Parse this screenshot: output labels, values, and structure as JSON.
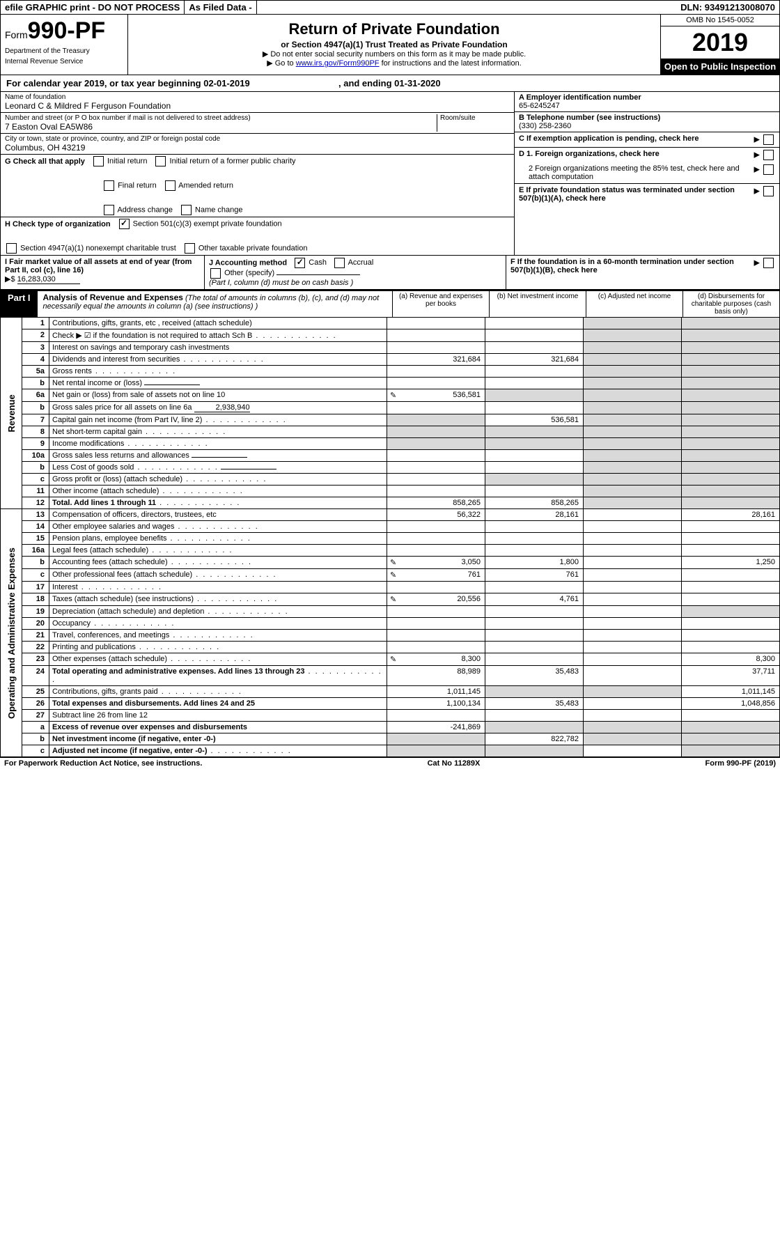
{
  "topbar": {
    "efile": "efile GRAPHIC print - DO NOT PROCESS",
    "asfiled": "As Filed Data -",
    "dln_label": "DLN:",
    "dln": "93491213008070"
  },
  "header": {
    "form_prefix": "Form",
    "form_num": "990-PF",
    "dept1": "Department of the Treasury",
    "dept2": "Internal Revenue Service",
    "title": "Return of Private Foundation",
    "subtitle": "or Section 4947(a)(1) Trust Treated as Private Foundation",
    "note1": "▶ Do not enter social security numbers on this form as it may be made public.",
    "note2_pre": "▶ Go to ",
    "note2_link": "www.irs.gov/Form990PF",
    "note2_post": " for instructions and the latest information.",
    "omb": "OMB No 1545-0052",
    "year": "2019",
    "open": "Open to Public Inspection"
  },
  "calyear": {
    "text_a": "For calendar year 2019, or tax year beginning 02-01-2019",
    "text_b": ", and ending 01-31-2020"
  },
  "left": {
    "name_label": "Name of foundation",
    "name": "Leonard C & Mildred F Ferguson Foundation",
    "addr_label": "Number and street (or P O  box number if mail is not delivered to street address)",
    "room_label": "Room/suite",
    "addr": "7 Easton Oval EA5W86",
    "city_label": "City or town, state or province, country, and ZIP or foreign postal code",
    "city": "Columbus, OH  43219"
  },
  "right": {
    "a_label": "A Employer identification number",
    "a_val": "65-6245247",
    "b_label": "B Telephone number (see instructions)",
    "b_val": "(330) 258-2360",
    "c_label": "C If exemption application is pending, check here",
    "d1": "D 1. Foreign organizations, check here",
    "d2": "2  Foreign organizations meeting the 85% test, check here and attach computation",
    "e": "E  If private foundation status was terminated under section 507(b)(1)(A), check here",
    "f": "F  If the foundation is in a 60-month termination under section 507(b)(1)(B), check here"
  },
  "g": {
    "label": "G Check all that apply",
    "opts": [
      "Initial return",
      "Initial return of a former public charity",
      "Final return",
      "Amended return",
      "Address change",
      "Name change"
    ]
  },
  "h": {
    "label": "H Check type of organization",
    "opt1": "Section 501(c)(3) exempt private foundation",
    "opt2": "Section 4947(a)(1) nonexempt charitable trust",
    "opt3": "Other taxable private foundation"
  },
  "i": {
    "label": "I Fair market value of all assets at end of year (from Part II, col  (c), line 16)",
    "prefix": "▶$",
    "val": "16,283,030"
  },
  "j": {
    "label": "J Accounting method",
    "cash": "Cash",
    "accrual": "Accrual",
    "other": "Other (specify)",
    "note": "(Part I, column (d) must be on cash basis )"
  },
  "part1": {
    "label": "Part I",
    "title": "Analysis of Revenue and Expenses",
    "sub": "(The total of amounts in columns (b), (c), and (d) may not necessarily equal the amounts in column (a) (see instructions) )",
    "col_a": "(a)  Revenue and expenses per books",
    "col_b": "(b)  Net investment income",
    "col_c": "(c)  Adjusted net income",
    "col_d": "(d)  Disbursements for charitable purposes (cash basis only)"
  },
  "vlabels": {
    "rev": "Revenue",
    "exp": "Operating and Administrative Expenses"
  },
  "rows": [
    {
      "n": "1",
      "t": "Contributions, gifts, grants, etc , received (attach schedule)",
      "a": "",
      "b": "",
      "c": "",
      "d": ""
    },
    {
      "n": "2",
      "t": "Check ▶ ☑ if the foundation is not required to attach Sch  B",
      "dots": true
    },
    {
      "n": "3",
      "t": "Interest on savings and temporary cash investments"
    },
    {
      "n": "4",
      "t": "Dividends and interest from securities",
      "dots": true,
      "a": "321,684",
      "b": "321,684"
    },
    {
      "n": "5a",
      "t": "Gross rents",
      "dots": true
    },
    {
      "n": "b",
      "t": "Net rental income or (loss)",
      "inline": true
    },
    {
      "n": "6a",
      "t": "Net gain or (loss) from sale of assets not on line 10",
      "pen": true,
      "a": "536,581",
      "bgrey": true
    },
    {
      "n": "b",
      "t": "Gross sales price for all assets on line 6a",
      "inline": true,
      "inlineval": "2,938,940"
    },
    {
      "n": "7",
      "t": "Capital gain net income (from Part IV, line 2)",
      "dots": true,
      "b": "536,581",
      "agrey": true
    },
    {
      "n": "8",
      "t": "Net short-term capital gain",
      "dots": true,
      "agrey": true,
      "bgrey": true
    },
    {
      "n": "9",
      "t": "Income modifications",
      "dots": true,
      "agrey": true,
      "bgrey": true
    },
    {
      "n": "10a",
      "t": "Gross sales less returns and allowances",
      "inline": true
    },
    {
      "n": "b",
      "t": "Less  Cost of goods sold",
      "dots": true,
      "inline": true
    },
    {
      "n": "c",
      "t": "Gross profit or (loss) (attach schedule)",
      "dots": true,
      "bgrey": true
    },
    {
      "n": "11",
      "t": "Other income (attach schedule)",
      "dots": true
    },
    {
      "n": "12",
      "t": "Total. Add lines 1 through 11",
      "dots": true,
      "bold": true,
      "a": "858,265",
      "b": "858,265"
    },
    {
      "n": "13",
      "t": "Compensation of officers, directors, trustees, etc",
      "a": "56,322",
      "b": "28,161",
      "d": "28,161"
    },
    {
      "n": "14",
      "t": "Other employee salaries and wages",
      "dots": true
    },
    {
      "n": "15",
      "t": "Pension plans, employee benefits",
      "dots": true
    },
    {
      "n": "16a",
      "t": "Legal fees (attach schedule)",
      "dots": true
    },
    {
      "n": "b",
      "t": "Accounting fees (attach schedule)",
      "dots": true,
      "pen": true,
      "a": "3,050",
      "b": "1,800",
      "d": "1,250"
    },
    {
      "n": "c",
      "t": "Other professional fees (attach schedule)",
      "dots": true,
      "pen": true,
      "a": "761",
      "b": "761"
    },
    {
      "n": "17",
      "t": "Interest",
      "dots": true
    },
    {
      "n": "18",
      "t": "Taxes (attach schedule) (see instructions)",
      "dots": true,
      "pen": true,
      "a": "20,556",
      "b": "4,761"
    },
    {
      "n": "19",
      "t": "Depreciation (attach schedule) and depletion",
      "dots": true,
      "dgrey": true
    },
    {
      "n": "20",
      "t": "Occupancy",
      "dots": true
    },
    {
      "n": "21",
      "t": "Travel, conferences, and meetings",
      "dots": true
    },
    {
      "n": "22",
      "t": "Printing and publications",
      "dots": true
    },
    {
      "n": "23",
      "t": "Other expenses (attach schedule)",
      "dots": true,
      "pen": true,
      "a": "8,300",
      "d": "8,300"
    },
    {
      "n": "24",
      "t": "Total operating and administrative expenses. Add lines 13 through 23",
      "dots": true,
      "bold": true,
      "a": "88,989",
      "b": "35,483",
      "d": "37,711"
    },
    {
      "n": "25",
      "t": "Contributions, gifts, grants paid",
      "dots": true,
      "a": "1,011,145",
      "bgrey": true,
      "cgrey": true,
      "d": "1,011,145"
    },
    {
      "n": "26",
      "t": "Total expenses and disbursements. Add lines 24 and 25",
      "bold": true,
      "a": "1,100,134",
      "b": "35,483",
      "d": "1,048,856"
    },
    {
      "n": "27",
      "t": "Subtract line 26 from line 12"
    },
    {
      "n": "a",
      "t": "Excess of revenue over expenses and disbursements",
      "bold": true,
      "a": "-241,869",
      "bgrey": true,
      "cgrey": true,
      "dgrey": true
    },
    {
      "n": "b",
      "t": "Net investment income (if negative, enter -0-)",
      "bold": true,
      "agrey": true,
      "b": "822,782",
      "cgrey": true,
      "dgrey": true
    },
    {
      "n": "c",
      "t": "Adjusted net income (if negative, enter -0-)",
      "dots": true,
      "bold": true,
      "agrey": true,
      "bgrey": true,
      "dgrey": true
    }
  ],
  "footer": {
    "left": "For Paperwork Reduction Act Notice, see instructions.",
    "mid": "Cat  No  11289X",
    "right": "Form 990-PF (2019)"
  },
  "colors": {
    "grey": "#d9d9d9",
    "link": "#0000cc"
  }
}
